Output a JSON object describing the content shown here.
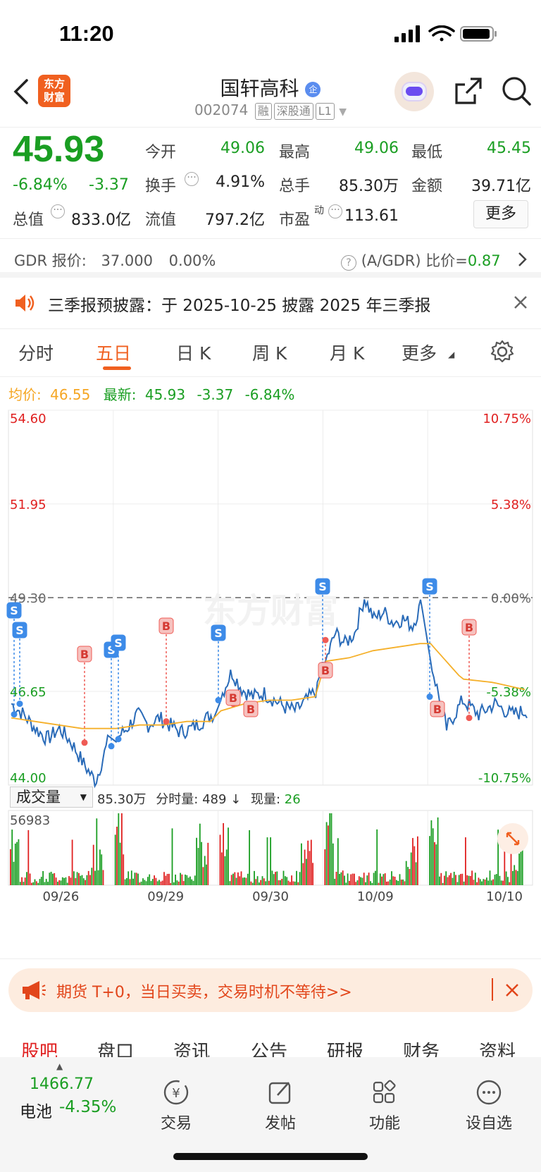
{
  "status_bar": {
    "time": "11:20"
  },
  "header": {
    "title": "国轩高科",
    "code": "002074",
    "tags": [
      "融",
      "深股通",
      "L1"
    ],
    "app_logo": "东方\n财富",
    "icons": [
      "back-icon",
      "robot-icon",
      "share-icon",
      "search-icon"
    ]
  },
  "quote": {
    "price": "45.93",
    "change_pct": "-6.84%",
    "change": "-3.37",
    "open_label": "今开",
    "open": "49.06",
    "high_label": "最高",
    "high": "49.06",
    "low_label": "最低",
    "low": "45.45",
    "turnover_label": "换手",
    "turnover": "4.91%",
    "volume_label": "总手",
    "volume": "85.30万",
    "amount_label": "金额",
    "amount": "39.71亿",
    "mktcap_label": "总值",
    "mktcap": "833.0亿",
    "float_label": "流值",
    "float": "797.2亿",
    "pe_label": "市盈",
    "pe_sup": "动",
    "pe": "113.61",
    "more_label": "更多"
  },
  "gdr": {
    "label": "GDR 报价:",
    "price": "37.000",
    "pct": "0.00%",
    "ratio_label": "(A/GDR) 比价=",
    "ratio": "0.87"
  },
  "notice": {
    "text": "三季报预披露：于 2025-10-25 披露 2025 年三季报"
  },
  "chart_tabs": {
    "items": [
      "分时",
      "五日",
      "日 K",
      "周 K",
      "月 K",
      "更多"
    ],
    "active": "五日"
  },
  "legend": {
    "avg_label": "均价:",
    "avg": "46.55",
    "latest_label": "最新:",
    "latest": "45.93",
    "chg": "-3.37",
    "pct": "-6.84%"
  },
  "chart_data": {
    "type": "line",
    "x": [
      "09/26",
      "09/29",
      "09/30",
      "10/09",
      "10/10"
    ],
    "price_axis": [
      "54.60",
      "51.95",
      "49.30",
      "46.65",
      "44.00"
    ],
    "pct_axis": [
      "10.75%",
      "5.38%",
      "0.00%",
      "-5.38%",
      "-10.75%"
    ],
    "ylim": [
      44.0,
      54.6
    ],
    "prev_close": 49.3,
    "series": [
      {
        "name": "price",
        "color": "#2a6bb8",
        "values_per_day": [
          [
            46.3,
            46.0,
            45.6,
            45.3,
            45.6,
            45.2,
            44.6,
            44.1,
            45.2
          ],
          [
            45.3,
            45.6,
            46.0,
            45.7,
            45.9,
            45.7,
            45.5,
            45.6,
            45.8,
            46.0
          ],
          [
            46.5,
            47.2,
            46.7,
            46.5,
            46.6,
            46.4,
            46.2,
            46.1,
            46.4,
            46.7
          ],
          [
            47.5,
            48.3,
            48.0,
            48.3,
            49.3,
            48.7,
            48.9,
            48.6,
            48.7,
            48.5,
            49.2
          ],
          [
            47.5,
            45.6,
            46.4,
            46.0,
            46.3,
            46.0,
            46.1
          ]
        ]
      },
      {
        "name": "avg",
        "color": "#f5b02a",
        "values_per_day": [
          [
            45.9,
            45.8,
            45.7,
            45.6,
            45.6
          ],
          [
            45.6,
            45.7,
            45.7,
            45.8,
            45.8
          ],
          [
            46.1,
            46.3,
            46.4,
            46.4,
            46.5
          ],
          [
            47.5,
            47.6,
            47.8,
            47.9,
            48.0
          ],
          [
            48.0,
            47.0,
            46.9,
            46.7
          ]
        ]
      }
    ],
    "markers": [
      {
        "day": 0,
        "type": "S"
      },
      {
        "day": 0,
        "type": "S"
      },
      {
        "day": 0,
        "type": "B"
      },
      {
        "day": 0,
        "type": "S"
      },
      {
        "day": 0,
        "type": "S"
      },
      {
        "day": 1,
        "type": "B"
      },
      {
        "day": 1,
        "type": "S"
      },
      {
        "day": 2,
        "type": "B"
      },
      {
        "day": 2,
        "type": "B"
      },
      {
        "day": 3,
        "type": "S"
      },
      {
        "day": 3,
        "type": "B"
      },
      {
        "day": 4,
        "type": "S"
      },
      {
        "day": 4,
        "type": "B"
      },
      {
        "day": 4,
        "type": "B"
      }
    ],
    "volume": {
      "max_label": "56983",
      "label": "成交量",
      "total": "85.30万",
      "minute_label": "分时量:",
      "minute": "489 ↓",
      "now_label": "现量:",
      "now": "26"
    }
  },
  "ad": {
    "text": "期货 T+0，当日买卖，交易时机不等待>>"
  },
  "bottom_tabs": [
    "股吧",
    "盘口",
    "资讯",
    "公告",
    "研报",
    "财务",
    "资料"
  ],
  "bottom_bar": {
    "index_value": "1466.77",
    "index_name": "电池",
    "index_pct": "-4.35%",
    "items": [
      {
        "label": "交易",
        "icon": "trade-icon"
      },
      {
        "label": "发帖",
        "icon": "post-icon"
      },
      {
        "label": "功能",
        "icon": "apps-icon"
      },
      {
        "label": "设自选",
        "icon": "more-icon"
      }
    ]
  },
  "colors": {
    "up": "#e02020",
    "down": "#1a9e22",
    "accent": "#f06020",
    "price_line": "#2a6bb8",
    "avg_line": "#f5b02a"
  }
}
